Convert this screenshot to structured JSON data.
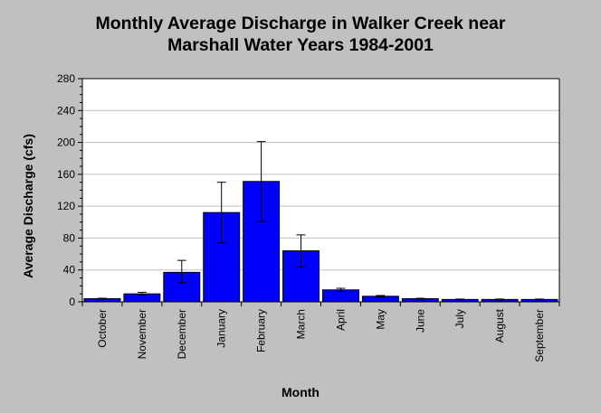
{
  "colors": {
    "background": "#c0c0c0",
    "plot_background": "#ffffff",
    "bar_fill": "#0000ff",
    "grid": "#c0c0c0",
    "axis": "#000000"
  },
  "chart_data": {
    "type": "bar",
    "title_lines": [
      "Monthly Average Discharge in Walker Creek near",
      "Marshall Water Years 1984-2001"
    ],
    "xlabel": "Month",
    "ylabel": "Average Discharge (cfs)",
    "categories": [
      "October",
      "November",
      "December",
      "January",
      "February",
      "March",
      "April",
      "May",
      "June",
      "July",
      "August",
      "September"
    ],
    "values": [
      4,
      10,
      37,
      112,
      151,
      64,
      15,
      7,
      4,
      3,
      3,
      3
    ],
    "error_low": [
      3.5,
      8.5,
      24,
      74,
      101,
      44,
      13,
      6,
      3.5,
      2.5,
      2.5,
      2.5
    ],
    "error_high": [
      4.5,
      12,
      52,
      150,
      201,
      84,
      17,
      8,
      4.5,
      3.5,
      3.5,
      3.5
    ],
    "ylim": [
      0,
      280
    ],
    "yticks": [
      0,
      40,
      80,
      120,
      160,
      200,
      240,
      280
    ],
    "grid": true,
    "legend": false
  }
}
